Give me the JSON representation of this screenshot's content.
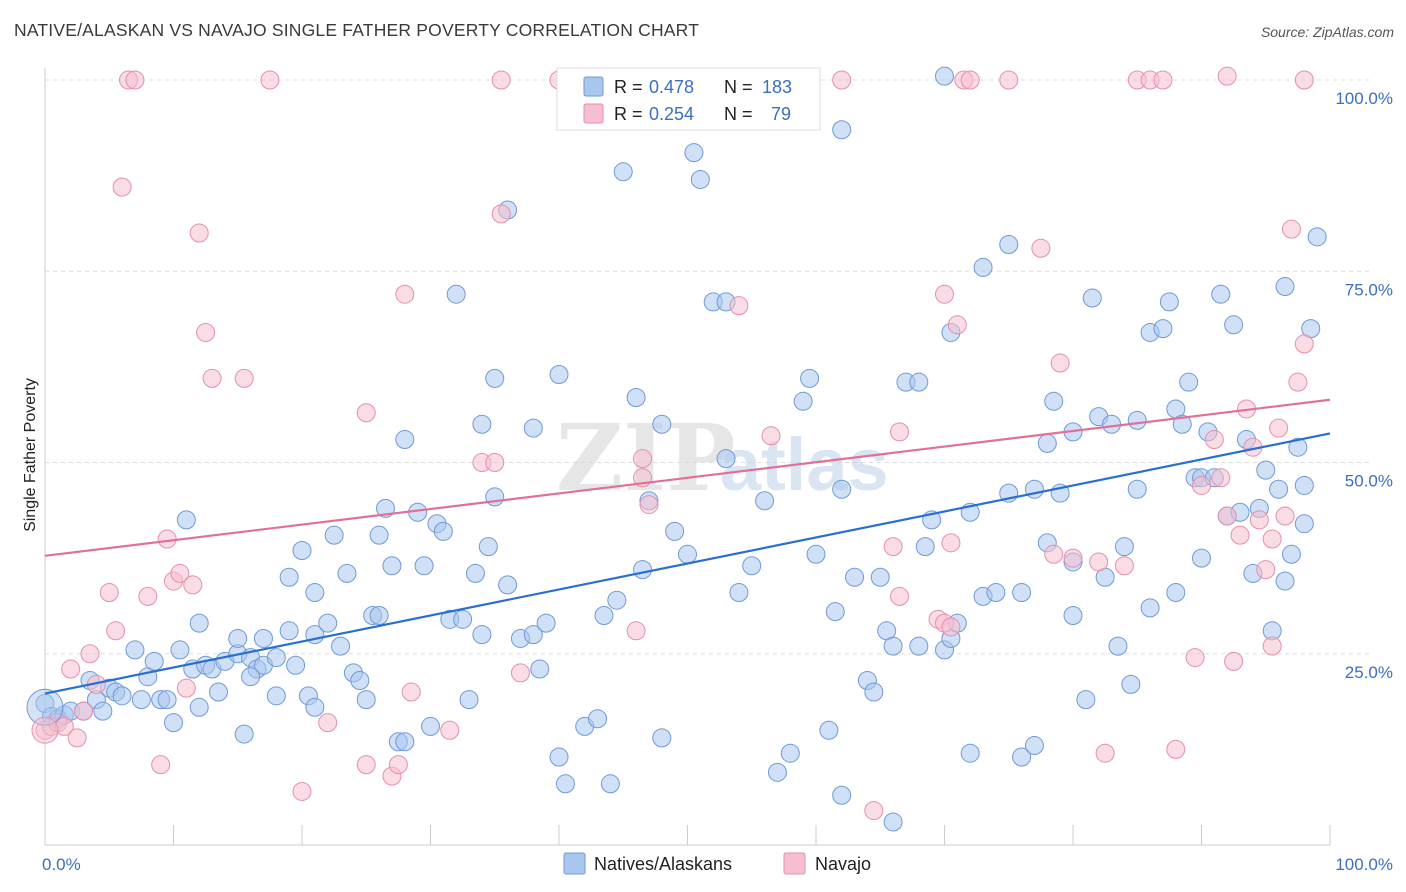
{
  "header": {
    "title": "NATIVE/ALASKAN VS NAVAJO SINGLE FATHER POVERTY CORRELATION CHART",
    "source": "Source: ZipAtlas.com"
  },
  "watermark": {
    "zip": "ZIP",
    "atlas": "atlas"
  },
  "colors": {
    "blue_fill": "#a9c6ee",
    "blue_stroke": "#6f9ad6",
    "blue_line": "#2a6fd0",
    "pink_fill": "#f5bfd0",
    "pink_stroke": "#e58fab",
    "pink_line": "#e07098",
    "tick_text": "#3a6fc4",
    "grid": "#dddddd"
  },
  "legend_top": {
    "rows": [
      {
        "r_label": "R =",
        "r_value": "0.478",
        "n_label": "N =",
        "n_value": "183",
        "series": "blue"
      },
      {
        "r_label": "R =",
        "r_value": "0.254",
        "n_label": "N =",
        "n_value": "79",
        "series": "pink"
      }
    ]
  },
  "legend_bottom": {
    "items": [
      {
        "label": "Natives/Alaskans",
        "series": "blue"
      },
      {
        "label": "Navajo",
        "series": "pink"
      }
    ]
  },
  "chart_data": {
    "type": "scatter",
    "title": "NATIVE/ALASKAN VS NAVAJO SINGLE FATHER POVERTY CORRELATION CHART",
    "ylabel": "Single Father Poverty",
    "xlabel": "",
    "xlim": [
      0,
      100
    ],
    "ylim": [
      0,
      100
    ],
    "x_tick_labels": [
      "0.0%",
      "100.0%"
    ],
    "y_ticks": [
      25,
      50,
      75,
      100
    ],
    "y_tick_labels": [
      "25.0%",
      "50.0%",
      "75.0%",
      "100.0%"
    ],
    "grid": true,
    "legend_placement": "top-center",
    "series": [
      {
        "name": "Natives/Alaskans",
        "color": "#a9c6ee",
        "trend": {
          "x": [
            0,
            100
          ],
          "y": [
            19.8,
            53.8
          ]
        },
        "points": [
          [
            0,
            18.5
          ],
          [
            0.5,
            16.8
          ],
          [
            1,
            16.5
          ],
          [
            1.5,
            17
          ],
          [
            2,
            17.5
          ],
          [
            3,
            17.5
          ],
          [
            3.5,
            21.5
          ],
          [
            4,
            19
          ],
          [
            4.5,
            17.5
          ],
          [
            5,
            20.5
          ],
          [
            5.5,
            20
          ],
          [
            6,
            19.5
          ],
          [
            7,
            25.5
          ],
          [
            7.5,
            19
          ],
          [
            8,
            22
          ],
          [
            8.5,
            24
          ],
          [
            9,
            19
          ],
          [
            9.5,
            19
          ],
          [
            10,
            16
          ],
          [
            10.5,
            25.5
          ],
          [
            11,
            42.5
          ],
          [
            11.5,
            23
          ],
          [
            12,
            18
          ],
          [
            12.5,
            23.5
          ],
          [
            13,
            23
          ],
          [
            13.5,
            20
          ],
          [
            14,
            24
          ],
          [
            15,
            25
          ],
          [
            15,
            27
          ],
          [
            15.5,
            14.5
          ],
          [
            16,
            24.5
          ],
          [
            16.5,
            23
          ],
          [
            17,
            27
          ],
          [
            17,
            23.5
          ],
          [
            18,
            24.5
          ],
          [
            18,
            19.5
          ],
          [
            19,
            35
          ],
          [
            19,
            28
          ],
          [
            19.5,
            23.5
          ],
          [
            20,
            38.5
          ],
          [
            20.5,
            19.5
          ],
          [
            21,
            27.5
          ],
          [
            21,
            18
          ],
          [
            22,
            29
          ],
          [
            22.5,
            40.5
          ],
          [
            23,
            26
          ],
          [
            23.5,
            35.5
          ],
          [
            24,
            22.5
          ],
          [
            24.5,
            21.5
          ],
          [
            25,
            19
          ],
          [
            25.5,
            30
          ],
          [
            26,
            40.5
          ],
          [
            26.5,
            44
          ],
          [
            27,
            36.5
          ],
          [
            27.5,
            13.5
          ],
          [
            28,
            13.5
          ],
          [
            28,
            53
          ],
          [
            29,
            43.5
          ],
          [
            29.5,
            36.5
          ],
          [
            30,
            15.5
          ],
          [
            30.5,
            42
          ],
          [
            31,
            41
          ],
          [
            31.5,
            29.5
          ],
          [
            32,
            72
          ],
          [
            32.5,
            29.5
          ],
          [
            33,
            19
          ],
          [
            33.5,
            35.5
          ],
          [
            34,
            27.5
          ],
          [
            34.5,
            39
          ],
          [
            35,
            61
          ],
          [
            35,
            45.5
          ],
          [
            36,
            34
          ],
          [
            36,
            83
          ],
          [
            37,
            27
          ],
          [
            38,
            27.5
          ],
          [
            38.5,
            23
          ],
          [
            39,
            29
          ],
          [
            40,
            11.5
          ],
          [
            40,
            61.5
          ],
          [
            40.5,
            8
          ],
          [
            42,
            15.5
          ],
          [
            43,
            16.5
          ],
          [
            43.5,
            30
          ],
          [
            44,
            8
          ],
          [
            44.5,
            32
          ],
          [
            45,
            88
          ],
          [
            46,
            58.5
          ],
          [
            46.5,
            36
          ],
          [
            47,
            45
          ],
          [
            48,
            14
          ],
          [
            49,
            41
          ],
          [
            50,
            38
          ],
          [
            50.5,
            90.5
          ],
          [
            51,
            87
          ],
          [
            52,
            71
          ],
          [
            53,
            71
          ],
          [
            53,
            50.5
          ],
          [
            54,
            33
          ],
          [
            55,
            36.5
          ],
          [
            56,
            45
          ],
          [
            57,
            9.5
          ],
          [
            58,
            12
          ],
          [
            59,
            58
          ],
          [
            59.5,
            61
          ],
          [
            60,
            38
          ],
          [
            61,
            15
          ],
          [
            61.5,
            30.5
          ],
          [
            62,
            93.5
          ],
          [
            62,
            46.5
          ],
          [
            63,
            35
          ],
          [
            64,
            21.5
          ],
          [
            64.5,
            20
          ],
          [
            65,
            35
          ],
          [
            65.5,
            28
          ],
          [
            66,
            26
          ],
          [
            67,
            60.5
          ],
          [
            68,
            26
          ],
          [
            68,
            60.5
          ],
          [
            68.5,
            39
          ],
          [
            69,
            42.5
          ],
          [
            70,
            25.5
          ],
          [
            70.5,
            27
          ],
          [
            70.5,
            67
          ],
          [
            71,
            29
          ],
          [
            72,
            12
          ],
          [
            72,
            43.5
          ],
          [
            73,
            32.5
          ],
          [
            73,
            75.5
          ],
          [
            74,
            33
          ],
          [
            75,
            78.5
          ],
          [
            75,
            46
          ],
          [
            76,
            33
          ],
          [
            76,
            11.5
          ],
          [
            77,
            13
          ],
          [
            77,
            46.5
          ],
          [
            78,
            39.5
          ],
          [
            78,
            52.5
          ],
          [
            78.5,
            58
          ],
          [
            79,
            46
          ],
          [
            80,
            30
          ],
          [
            80,
            37
          ],
          [
            80,
            54
          ],
          [
            81,
            19
          ],
          [
            81.5,
            71.5
          ],
          [
            82,
            56
          ],
          [
            82.5,
            35
          ],
          [
            83,
            55
          ],
          [
            83.5,
            26
          ],
          [
            84,
            39
          ],
          [
            84.5,
            21
          ],
          [
            85,
            46.5
          ],
          [
            85,
            55.5
          ],
          [
            86,
            31
          ],
          [
            86,
            67
          ],
          [
            87,
            67.5
          ],
          [
            87.5,
            71
          ],
          [
            88,
            33
          ],
          [
            88,
            57
          ],
          [
            88.5,
            55
          ],
          [
            89,
            60.5
          ],
          [
            89.5,
            48
          ],
          [
            90,
            48
          ],
          [
            90,
            37.5
          ],
          [
            90.5,
            54
          ],
          [
            91,
            48
          ],
          [
            91.5,
            72
          ],
          [
            92,
            43
          ],
          [
            92.5,
            68
          ],
          [
            93,
            43.5
          ],
          [
            93.5,
            53
          ],
          [
            94,
            35.5
          ],
          [
            94.5,
            44
          ],
          [
            95,
            49
          ],
          [
            95.5,
            28
          ],
          [
            96,
            46.5
          ],
          [
            96.5,
            34.5
          ],
          [
            96.5,
            73
          ],
          [
            97,
            38
          ],
          [
            97.5,
            52
          ],
          [
            98,
            42
          ],
          [
            98,
            47
          ],
          [
            98.5,
            67.5
          ],
          [
            99,
            79.5
          ],
          [
            48,
            55
          ],
          [
            12,
            29
          ],
          [
            16,
            22
          ],
          [
            21,
            33
          ],
          [
            26,
            30
          ],
          [
            66,
            3
          ],
          [
            70,
            100.5
          ],
          [
            38,
            54.5
          ],
          [
            34,
            55
          ],
          [
            62,
            6.5
          ]
        ]
      },
      {
        "name": "Navajo",
        "color": "#f5bfd0",
        "trend": {
          "x": [
            0,
            100
          ],
          "y": [
            37.8,
            58.2
          ]
        },
        "points": [
          [
            0,
            15
          ],
          [
            0.5,
            15.5
          ],
          [
            1,
            16
          ],
          [
            1.5,
            15.5
          ],
          [
            2,
            23
          ],
          [
            2.5,
            14
          ],
          [
            3,
            17.5
          ],
          [
            3.5,
            25
          ],
          [
            4,
            21
          ],
          [
            5,
            33
          ],
          [
            5.5,
            28
          ],
          [
            6,
            86
          ],
          [
            6.5,
            100
          ],
          [
            7,
            100
          ],
          [
            8,
            32.5
          ],
          [
            9,
            10.5
          ],
          [
            9.5,
            40
          ],
          [
            10,
            34.5
          ],
          [
            10.5,
            35.5
          ],
          [
            11,
            20.5
          ],
          [
            11.5,
            34
          ],
          [
            12,
            80
          ],
          [
            12.5,
            67
          ],
          [
            13,
            61
          ],
          [
            15.5,
            61
          ],
          [
            17.5,
            100
          ],
          [
            20,
            7
          ],
          [
            22,
            16
          ],
          [
            25,
            10.5
          ],
          [
            27,
            9
          ],
          [
            27.5,
            10.5
          ],
          [
            28,
            72
          ],
          [
            28.5,
            20
          ],
          [
            31.5,
            15
          ],
          [
            34,
            50
          ],
          [
            35,
            50
          ],
          [
            35.5,
            82.5
          ],
          [
            37,
            22.5
          ],
          [
            40,
            100
          ],
          [
            46,
            28
          ],
          [
            46.5,
            48
          ],
          [
            47,
            44.5
          ],
          [
            54,
            70.5
          ],
          [
            56.5,
            53.5
          ],
          [
            62,
            100
          ],
          [
            64.5,
            4.5
          ],
          [
            66,
            39
          ],
          [
            66.5,
            32.5
          ],
          [
            66.5,
            54
          ],
          [
            70,
            72
          ],
          [
            70.5,
            39.5
          ],
          [
            69.5,
            29.5
          ],
          [
            70,
            29
          ],
          [
            70.5,
            28.5
          ],
          [
            71,
            68
          ],
          [
            71.5,
            100
          ],
          [
            72,
            100
          ],
          [
            75,
            100
          ],
          [
            77.5,
            78
          ],
          [
            78.5,
            38
          ],
          [
            79,
            63
          ],
          [
            80,
            37.5
          ],
          [
            82,
            37
          ],
          [
            82.5,
            12
          ],
          [
            84,
            36.5
          ],
          [
            85,
            100
          ],
          [
            86,
            100
          ],
          [
            87,
            100
          ],
          [
            88,
            12.5
          ],
          [
            89.5,
            24.5
          ],
          [
            90,
            47
          ],
          [
            91,
            53
          ],
          [
            91.5,
            48
          ],
          [
            92,
            43
          ],
          [
            92.5,
            24
          ],
          [
            93,
            40.5
          ],
          [
            93.5,
            57
          ],
          [
            94,
            52
          ],
          [
            95,
            36
          ],
          [
            95.5,
            26
          ],
          [
            96,
            54.5
          ],
          [
            96.5,
            43
          ],
          [
            97,
            80.5
          ],
          [
            97.5,
            60.5
          ],
          [
            98,
            65.5
          ],
          [
            98,
            100
          ],
          [
            92,
            100.5
          ],
          [
            46.5,
            50.5
          ],
          [
            25,
            56.5
          ],
          [
            95.5,
            40
          ],
          [
            94.5,
            42.5
          ],
          [
            35.5,
            100
          ]
        ]
      }
    ]
  }
}
